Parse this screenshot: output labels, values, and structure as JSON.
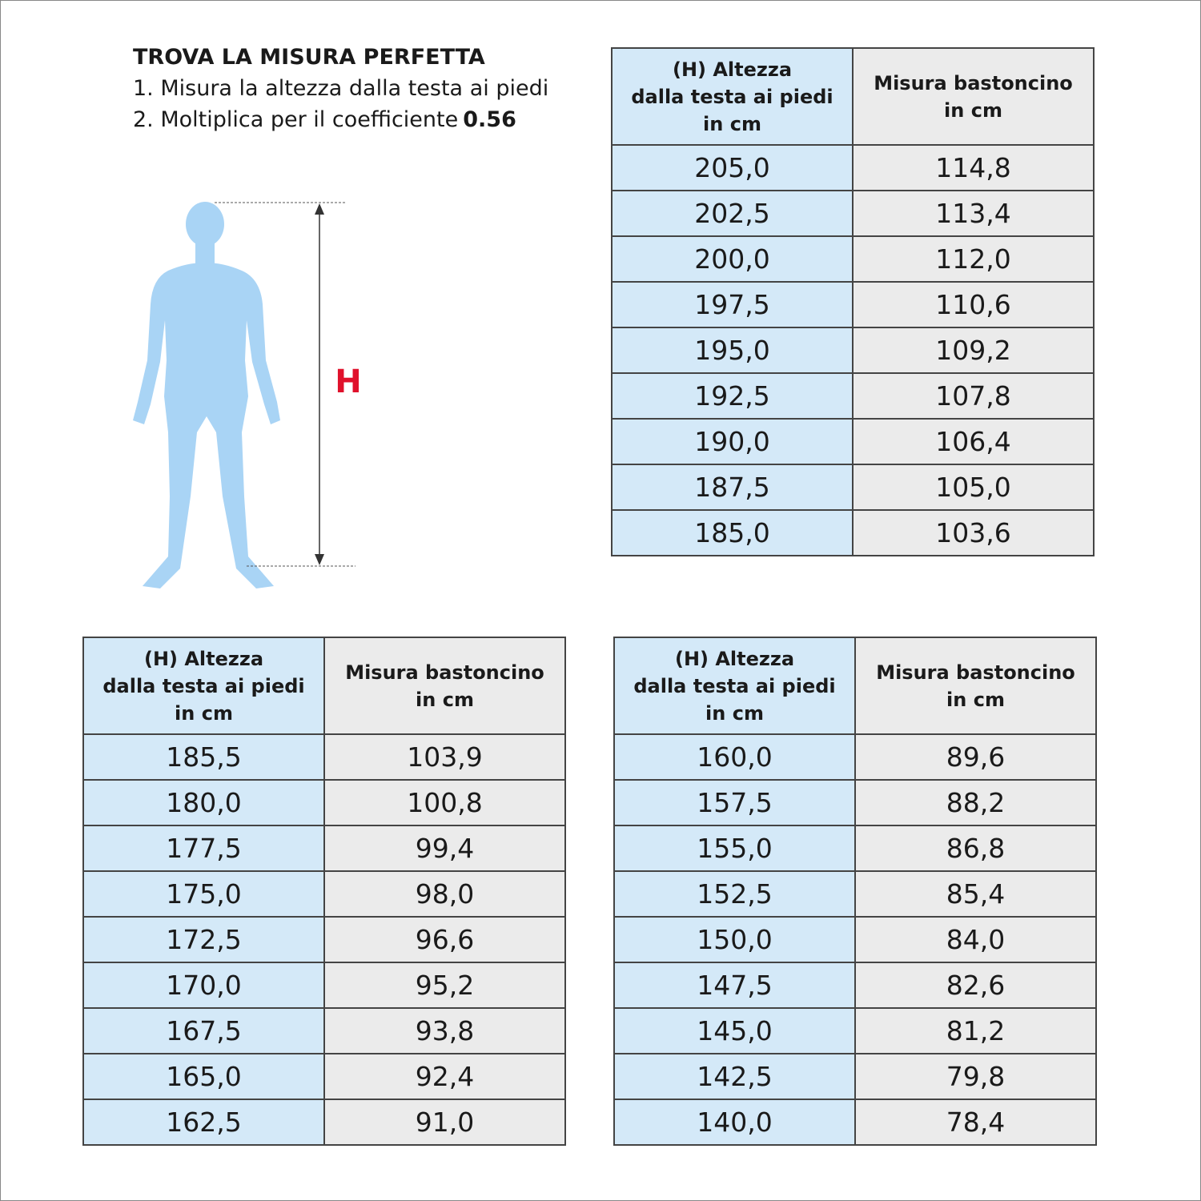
{
  "header": {
    "title": "TROVA LA MISURA PERFETTA",
    "steps": [
      {
        "text": "1. Misura la altezza dalla testa ai piedi"
      },
      {
        "text": "2. Moltiplica per il coefficiente",
        "bold": "0.56"
      }
    ]
  },
  "figure": {
    "label": "H"
  },
  "tables": [
    {
      "headers": [
        [
          "(H) Altezza",
          "dalla testa ai piedi",
          "in cm"
        ],
        [
          "Misura bastoncino",
          "in cm"
        ]
      ],
      "rows": [
        [
          "205,0",
          "114,8"
        ],
        [
          "202,5",
          "113,4"
        ],
        [
          "200,0",
          "112,0"
        ],
        [
          "197,5",
          "110,6"
        ],
        [
          "195,0",
          "109,2"
        ],
        [
          "192,5",
          "107,8"
        ],
        [
          "190,0",
          "106,4"
        ],
        [
          "187,5",
          "105,0"
        ],
        [
          "185,0",
          "103,6"
        ]
      ]
    },
    {
      "headers": [
        [
          "(H) Altezza",
          "dalla testa ai piedi",
          "in cm"
        ],
        [
          "Misura bastoncino",
          "in cm"
        ]
      ],
      "rows": [
        [
          "185,5",
          "103,9"
        ],
        [
          "180,0",
          "100,8"
        ],
        [
          "177,5",
          "99,4"
        ],
        [
          "175,0",
          "98,0"
        ],
        [
          "172,5",
          "96,6"
        ],
        [
          "170,0",
          "95,2"
        ],
        [
          "167,5",
          "93,8"
        ],
        [
          "165,0",
          "92,4"
        ],
        [
          "162,5",
          "91,0"
        ]
      ]
    },
    {
      "headers": [
        [
          "(H) Altezza",
          "dalla testa ai piedi",
          "in cm"
        ],
        [
          "Misura bastoncino",
          "in cm"
        ]
      ],
      "rows": [
        [
          "160,0",
          "89,6"
        ],
        [
          "157,5",
          "88,2"
        ],
        [
          "155,0",
          "86,8"
        ],
        [
          "152,5",
          "85,4"
        ],
        [
          "150,0",
          "84,0"
        ],
        [
          "147,5",
          "82,6"
        ],
        [
          "145,0",
          "81,2"
        ],
        [
          "142,5",
          "79,8"
        ],
        [
          "140,0",
          "78,4"
        ]
      ]
    }
  ]
}
